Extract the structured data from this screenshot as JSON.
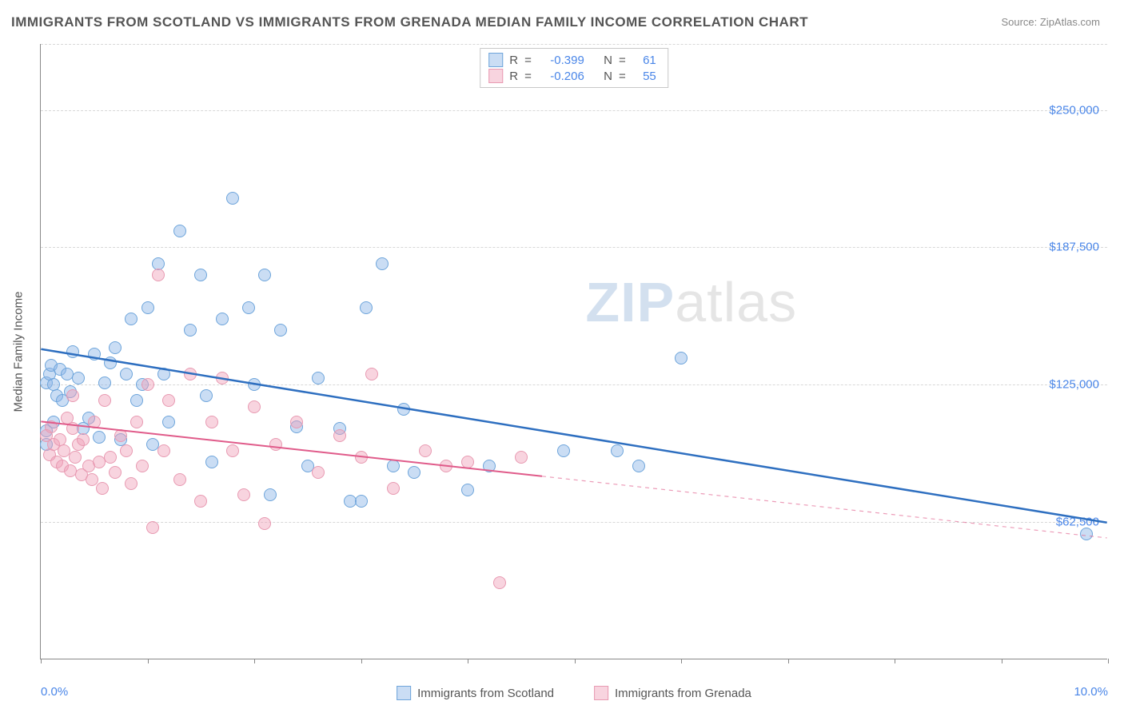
{
  "title": "IMMIGRANTS FROM SCOTLAND VS IMMIGRANTS FROM GRENADA MEDIAN FAMILY INCOME CORRELATION CHART",
  "source_label": "Source: ",
  "source_name": "ZipAtlas.com",
  "y_axis_label": "Median Family Income",
  "watermark_zip": "ZIP",
  "watermark_atlas": "atlas",
  "chart": {
    "type": "scatter",
    "x_domain": [
      0,
      10
    ],
    "y_domain": [
      0,
      280000
    ],
    "x_ticks": [
      0,
      1,
      2,
      3,
      4,
      5,
      6,
      7,
      8,
      9,
      10
    ],
    "x_tick_labels": {
      "0": "0.0%",
      "10": "10.0%"
    },
    "y_gridlines": [
      62500,
      125000,
      187500,
      250000,
      280000
    ],
    "y_tick_labels": {
      "62500": "$62,500",
      "125000": "$125,000",
      "187500": "$187,500",
      "250000": "$250,000"
    },
    "background_color": "#ffffff",
    "grid_color": "#d8d8d8",
    "axis_color": "#888888",
    "tick_label_color": "#4a86e8",
    "point_radius": 8,
    "series": [
      {
        "name": "Immigrants from Scotland",
        "fill_color": "rgba(137,180,230,0.45)",
        "stroke_color": "#6ea5db",
        "line_color": "#2e6fc0",
        "line_width": 2.5,
        "R": "-0.399",
        "N": "61",
        "trend": {
          "x1": 0,
          "y1": 141000,
          "x2": 10,
          "y2": 62000,
          "dashed_from_x": null
        },
        "points": [
          [
            0.05,
            126000
          ],
          [
            0.05,
            104000
          ],
          [
            0.08,
            130000
          ],
          [
            0.1,
            134000
          ],
          [
            0.12,
            108000
          ],
          [
            0.12,
            125000
          ],
          [
            0.15,
            120000
          ],
          [
            0.18,
            132000
          ],
          [
            0.2,
            118000
          ],
          [
            0.25,
            130000
          ],
          [
            0.28,
            122000
          ],
          [
            0.3,
            140000
          ],
          [
            0.35,
            128000
          ],
          [
            0.4,
            105000
          ],
          [
            0.45,
            110000
          ],
          [
            0.5,
            139000
          ],
          [
            0.55,
            101000
          ],
          [
            0.6,
            126000
          ],
          [
            0.65,
            135000
          ],
          [
            0.7,
            142000
          ],
          [
            0.75,
            100000
          ],
          [
            0.8,
            130000
          ],
          [
            0.85,
            155000
          ],
          [
            0.9,
            118000
          ],
          [
            0.95,
            125000
          ],
          [
            1.0,
            160000
          ],
          [
            1.05,
            98000
          ],
          [
            1.1,
            180000
          ],
          [
            1.15,
            130000
          ],
          [
            1.2,
            108000
          ],
          [
            1.3,
            195000
          ],
          [
            1.4,
            150000
          ],
          [
            1.5,
            175000
          ],
          [
            1.55,
            120000
          ],
          [
            1.6,
            90000
          ],
          [
            1.7,
            155000
          ],
          [
            1.8,
            210000
          ],
          [
            1.95,
            160000
          ],
          [
            2.0,
            125000
          ],
          [
            2.1,
            175000
          ],
          [
            2.15,
            75000
          ],
          [
            2.25,
            150000
          ],
          [
            2.4,
            106000
          ],
          [
            2.5,
            88000
          ],
          [
            2.6,
            128000
          ],
          [
            2.8,
            105000
          ],
          [
            2.9,
            72000
          ],
          [
            3.0,
            72000
          ],
          [
            3.05,
            160000
          ],
          [
            3.2,
            180000
          ],
          [
            3.3,
            88000
          ],
          [
            3.4,
            114000
          ],
          [
            3.5,
            85000
          ],
          [
            4.0,
            77000
          ],
          [
            4.2,
            88000
          ],
          [
            4.9,
            95000
          ],
          [
            5.4,
            95000
          ],
          [
            5.6,
            88000
          ],
          [
            6.0,
            137000
          ],
          [
            9.8,
            57000
          ],
          [
            0.05,
            98000
          ]
        ]
      },
      {
        "name": "Immigrants from Grenada",
        "fill_color": "rgba(240,160,185,0.45)",
        "stroke_color": "#e89ab2",
        "line_color": "#e05b8a",
        "line_width": 2,
        "R": "-0.206",
        "N": "55",
        "trend": {
          "x1": 0,
          "y1": 108000,
          "x2": 10,
          "y2": 55000,
          "dashed_from_x": 4.7
        },
        "points": [
          [
            0.05,
            102000
          ],
          [
            0.08,
            93000
          ],
          [
            0.1,
            106000
          ],
          [
            0.12,
            98000
          ],
          [
            0.15,
            90000
          ],
          [
            0.18,
            100000
          ],
          [
            0.2,
            88000
          ],
          [
            0.22,
            95000
          ],
          [
            0.25,
            110000
          ],
          [
            0.28,
            86000
          ],
          [
            0.3,
            105000
          ],
          [
            0.32,
            92000
          ],
          [
            0.35,
            98000
          ],
          [
            0.38,
            84000
          ],
          [
            0.4,
            100000
          ],
          [
            0.45,
            88000
          ],
          [
            0.48,
            82000
          ],
          [
            0.5,
            108000
          ],
          [
            0.55,
            90000
          ],
          [
            0.58,
            78000
          ],
          [
            0.6,
            118000
          ],
          [
            0.65,
            92000
          ],
          [
            0.7,
            85000
          ],
          [
            0.75,
            102000
          ],
          [
            0.8,
            95000
          ],
          [
            0.85,
            80000
          ],
          [
            0.9,
            108000
          ],
          [
            0.95,
            88000
          ],
          [
            1.0,
            125000
          ],
          [
            1.05,
            60000
          ],
          [
            1.1,
            175000
          ],
          [
            1.15,
            95000
          ],
          [
            1.2,
            118000
          ],
          [
            1.3,
            82000
          ],
          [
            1.4,
            130000
          ],
          [
            1.5,
            72000
          ],
          [
            1.6,
            108000
          ],
          [
            1.7,
            128000
          ],
          [
            1.8,
            95000
          ],
          [
            1.9,
            75000
          ],
          [
            2.0,
            115000
          ],
          [
            2.1,
            62000
          ],
          [
            2.2,
            98000
          ],
          [
            2.4,
            108000
          ],
          [
            2.6,
            85000
          ],
          [
            2.8,
            102000
          ],
          [
            3.0,
            92000
          ],
          [
            3.1,
            130000
          ],
          [
            3.3,
            78000
          ],
          [
            3.6,
            95000
          ],
          [
            3.8,
            88000
          ],
          [
            4.0,
            90000
          ],
          [
            4.3,
            35000
          ],
          [
            4.5,
            92000
          ],
          [
            0.3,
            120000
          ]
        ]
      }
    ]
  },
  "stats_box": {
    "r_label": "R",
    "n_label": "N",
    "eq": "="
  }
}
